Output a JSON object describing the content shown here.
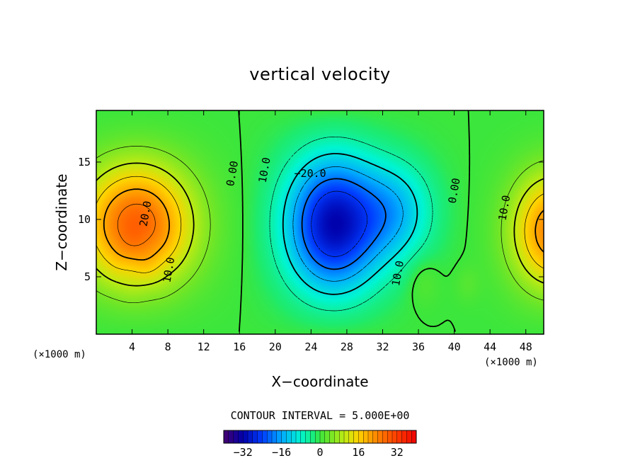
{
  "chart_data": {
    "type": "heatmap",
    "title": "vertical velocity",
    "xlabel": "X−coordinate",
    "ylabel": "Z−coordinate",
    "x_unit": "(×1000 m)",
    "y_unit": "(×1000 m)",
    "xlim": [
      0,
      50
    ],
    "ylim": [
      0,
      19.5
    ],
    "x_ticks": [
      4,
      8,
      12,
      16,
      20,
      24,
      28,
      32,
      36,
      40,
      44,
      48
    ],
    "y_ticks": [
      5,
      10,
      15
    ],
    "contour_interval_text": "CONTOUR INTERVAL = 5.000E+00",
    "contour_labels": [
      {
        "text": "20.0",
        "x": 5.5,
        "y": 10.5
      },
      {
        "text": "10.0",
        "x": 8.1,
        "y": 5.6
      },
      {
        "text": "0.00",
        "x": 15.2,
        "y": 14.0
      },
      {
        "text": "10.0",
        "x": 18.8,
        "y": 14.3
      },
      {
        "text": "−20.0",
        "x": 23.9,
        "y": 14.0
      },
      {
        "text": "10.0",
        "x": 33.7,
        "y": 5.3
      },
      {
        "text": "0.00",
        "x": 40.0,
        "y": 12.5
      },
      {
        "text": "10.0",
        "x": 45.6,
        "y": 11.0
      }
    ],
    "extrema": [
      {
        "sign": 1,
        "x": 4.5,
        "y": 9.5,
        "value": 27
      },
      {
        "sign": 1,
        "x": 50,
        "y": 8.5,
        "value": 25
      },
      {
        "sign": -1,
        "x": 26.7,
        "y": 9.0,
        "value": -30
      },
      {
        "sign": -1,
        "x": 33.5,
        "y": 10.5,
        "value": -14
      }
    ],
    "colorbar": {
      "range": [
        -40,
        40
      ],
      "tick_labels": [
        "−32",
        "−16",
        "0",
        "16",
        "32"
      ],
      "tick_values": [
        -32,
        -16,
        0,
        16,
        32
      ]
    },
    "colors": {
      "negative_peak": "#0000c8",
      "zero": "#3ce63c",
      "positive_peak": "#ff5a00"
    }
  }
}
